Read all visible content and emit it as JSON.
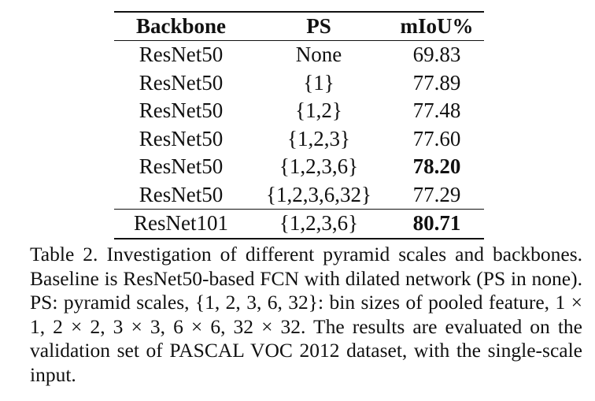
{
  "table": {
    "headers": [
      "Backbone",
      "PS",
      "mIoU%"
    ],
    "rows": [
      {
        "backbone": "ResNet50",
        "ps": "None",
        "miou": "69.83",
        "bold": false
      },
      {
        "backbone": "ResNet50",
        "ps": "{1}",
        "miou": "77.89",
        "bold": false
      },
      {
        "backbone": "ResNet50",
        "ps": "{1,2}",
        "miou": "77.48",
        "bold": false
      },
      {
        "backbone": "ResNet50",
        "ps": "{1,2,3}",
        "miou": "77.60",
        "bold": false
      },
      {
        "backbone": "ResNet50",
        "ps": "{1,2,3,6}",
        "miou": "78.20",
        "bold": true
      },
      {
        "backbone": "ResNet50",
        "ps": "{1,2,3,6,32}",
        "miou": "77.29",
        "bold": false
      },
      {
        "backbone": "ResNet101",
        "ps": "{1,2,3,6}",
        "miou": "80.71",
        "bold": true
      }
    ]
  },
  "caption": "Table 2. Investigation of different pyramid scales and backbones. Baseline is ResNet50-based FCN with dilated network (PS in none).  PS: pyramid scales, {1, 2, 3, 6, 32}: bin sizes of pooled feature, 1 × 1, 2 × 2, 3 × 3, 6 × 6, 32 × 32. The results are evaluated on the validation set of PASCAL VOC 2012 dataset, with the single-scale input."
}
